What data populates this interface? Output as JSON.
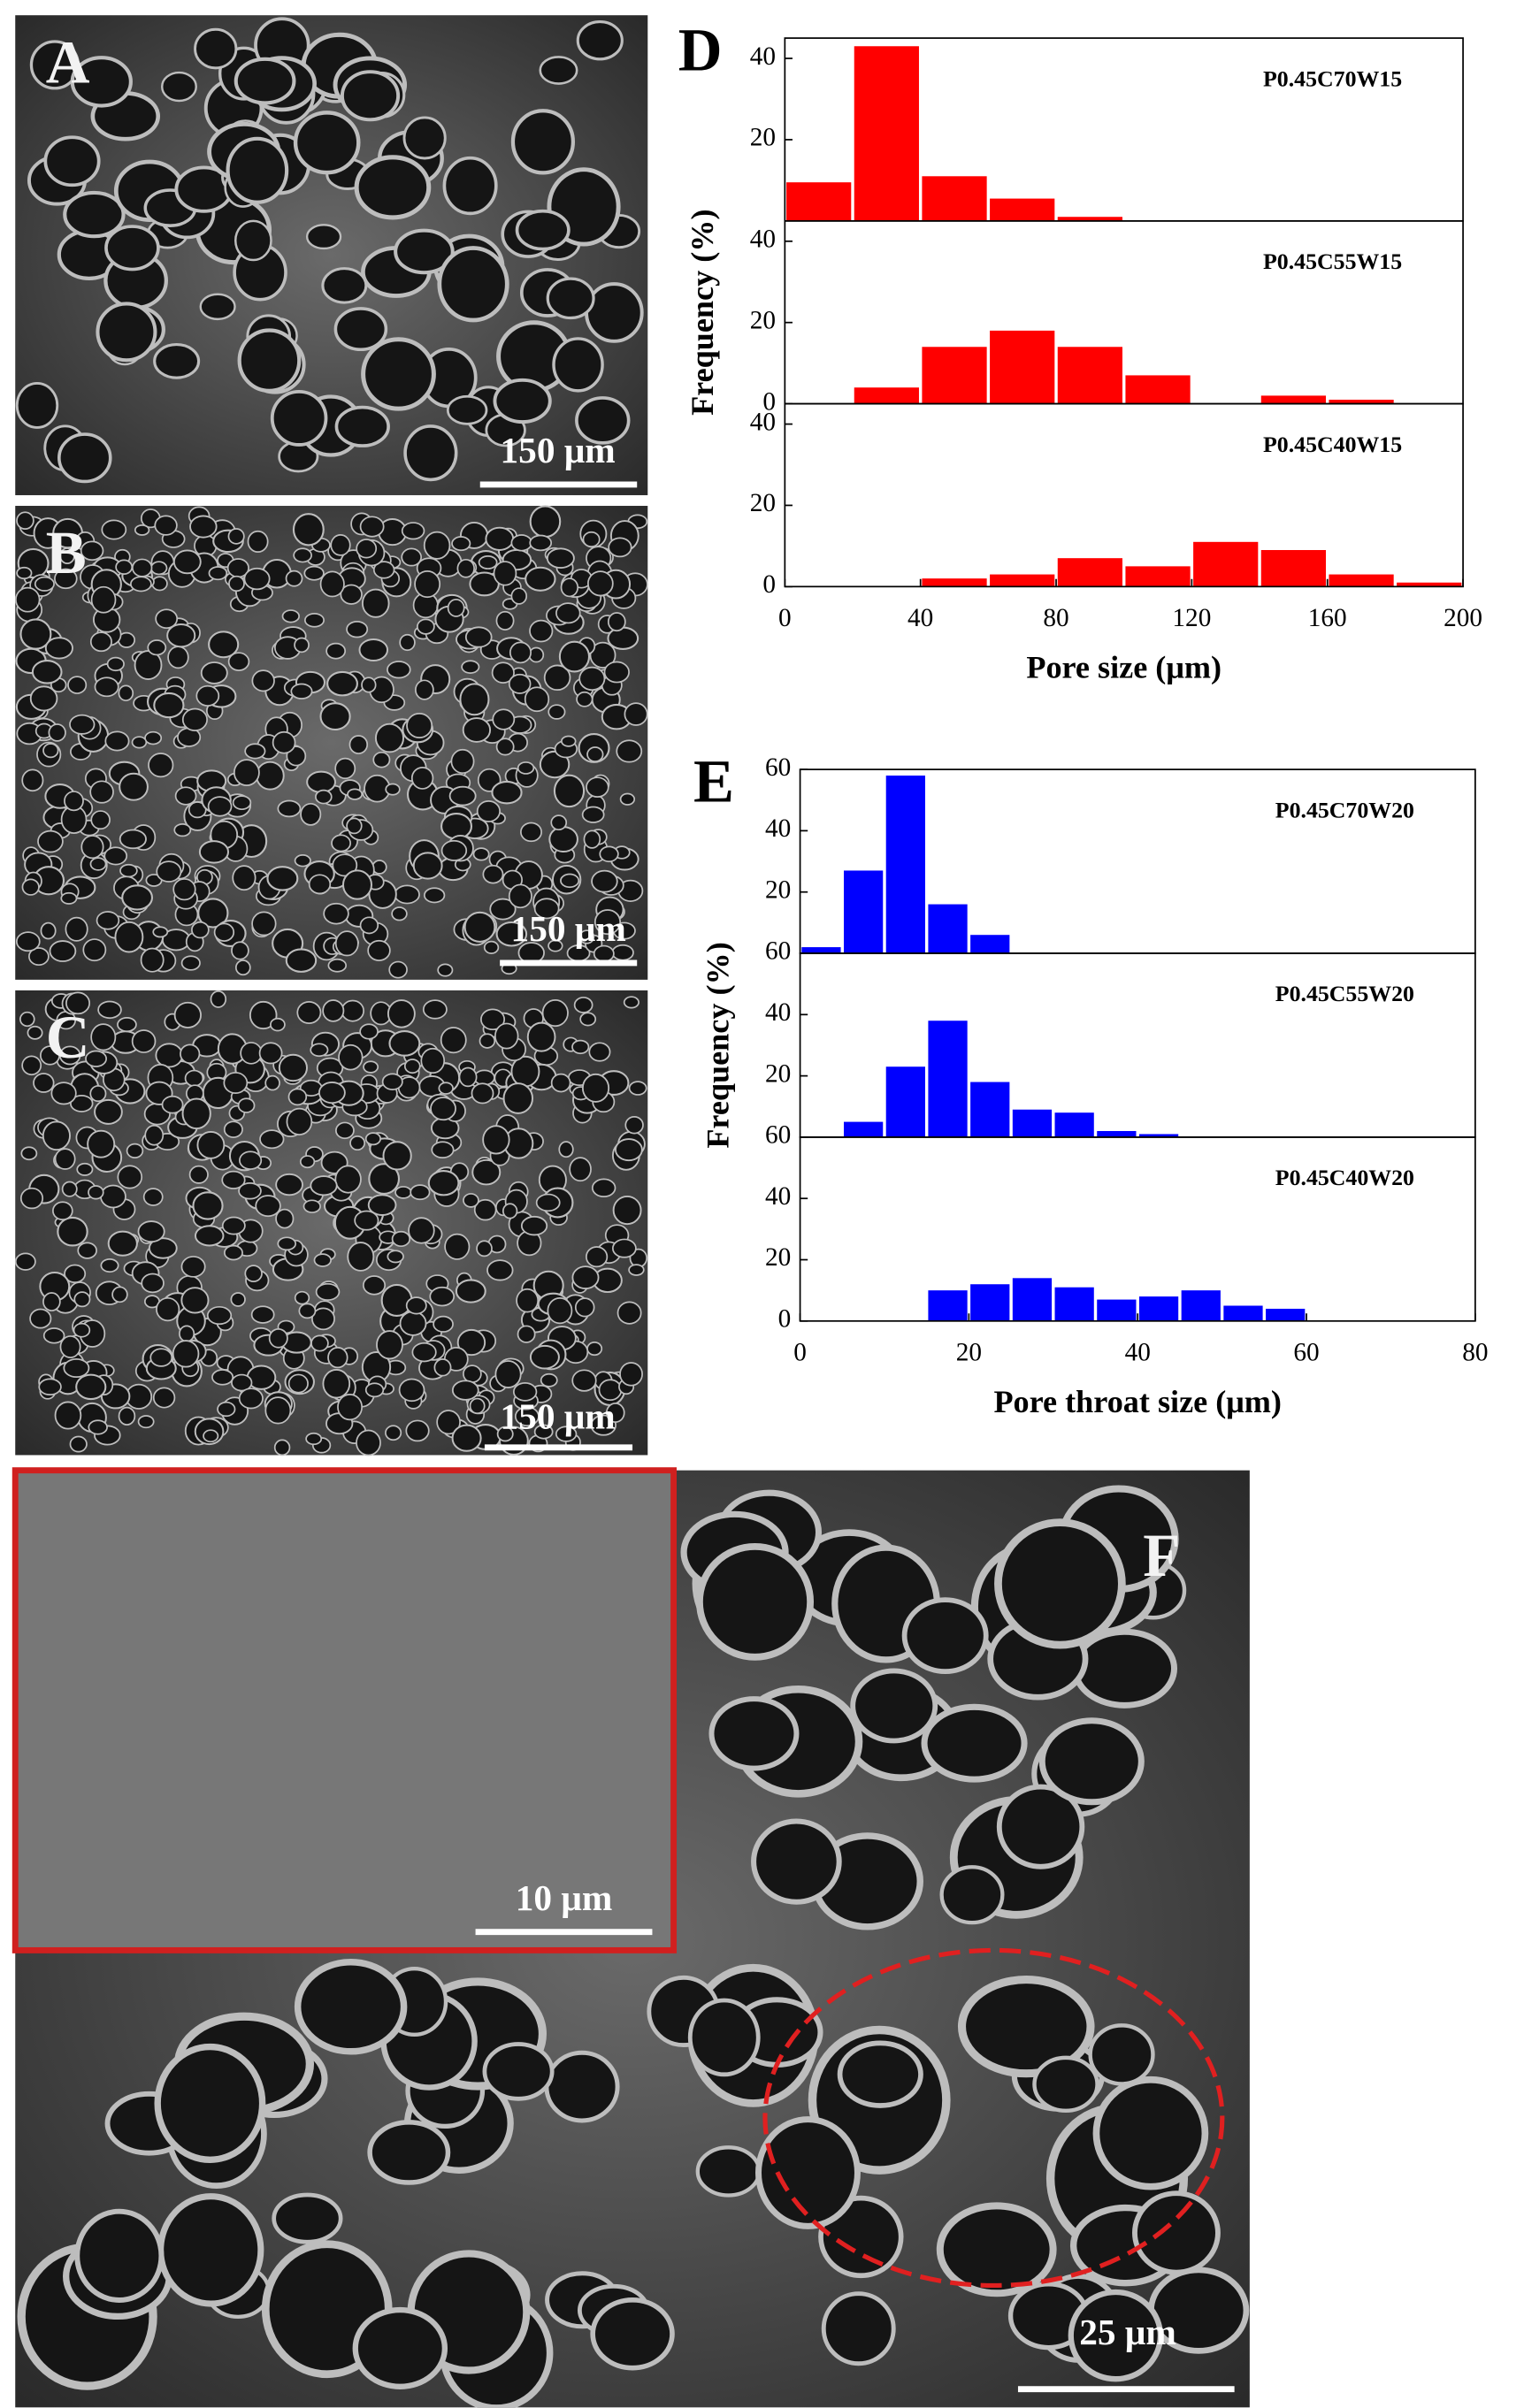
{
  "panels": [
    {
      "label": "A",
      "scale_bar": "150 μm"
    },
    {
      "label": "B",
      "scale_bar": "150 μm"
    },
    {
      "label": "C",
      "scale_bar": "150 μm"
    },
    {
      "label": "F",
      "scale_bar": "25 μm",
      "inset_scale_bar": "10 μm"
    }
  ],
  "chart_data": [
    {
      "type": "histogram",
      "panel_label": "D",
      "xlabel": "Pore size (μm)",
      "ylabel": "Frequency (%)",
      "color": "#ff0000",
      "bins": [
        0,
        20,
        40,
        60,
        80,
        100,
        120,
        140,
        160,
        180,
        200
      ],
      "xlim": [
        0,
        200
      ],
      "xticks": [
        0,
        40,
        80,
        120,
        160,
        200
      ],
      "series": [
        {
          "name": "P0.45C70W15",
          "values": [
            9.5,
            43,
            11,
            5.5,
            1,
            0,
            0,
            0,
            0,
            0
          ],
          "ylim": [
            0,
            45
          ],
          "yticks": [
            20,
            40
          ]
        },
        {
          "name": "P0.45C55W15",
          "values": [
            0,
            4,
            14,
            18,
            14,
            7,
            0,
            2,
            1,
            0
          ],
          "ylim": [
            0,
            45
          ],
          "yticks": [
            0,
            20,
            40
          ]
        },
        {
          "name": "P0.45C40W15",
          "values": [
            0,
            0,
            2,
            3,
            7,
            5,
            11,
            9,
            3,
            1
          ],
          "ylim": [
            0,
            45
          ],
          "yticks": [
            0,
            20,
            40
          ]
        }
      ]
    },
    {
      "type": "histogram",
      "panel_label": "E",
      "xlabel": "Pore throat size (μm)",
      "ylabel": "Frequency (%)",
      "color": "#0000ff",
      "bins": [
        0,
        5,
        10,
        15,
        20,
        25,
        30,
        35,
        40,
        45,
        50,
        55,
        60
      ],
      "xlim": [
        0,
        80
      ],
      "xticks": [
        0,
        20,
        40,
        60,
        80
      ],
      "series": [
        {
          "name": "P0.45C70W20",
          "values": [
            2,
            27,
            58,
            16,
            6,
            0,
            0,
            0,
            0,
            0,
            0,
            0
          ],
          "ylim": [
            0,
            60
          ],
          "yticks": [
            20,
            40,
            60
          ]
        },
        {
          "name": "P0.45C55W20",
          "values": [
            0,
            5,
            23,
            38,
            18,
            9,
            8,
            2,
            1,
            0,
            0,
            0
          ],
          "ylim": [
            0,
            60
          ],
          "yticks": [
            20,
            40,
            60
          ]
        },
        {
          "name": "P0.45C40W20",
          "values": [
            0,
            0,
            0,
            10,
            12,
            14,
            11,
            7,
            8,
            10,
            5,
            4
          ],
          "ylim": [
            0,
            60
          ],
          "yticks": [
            0,
            20,
            40,
            60
          ]
        }
      ]
    }
  ]
}
